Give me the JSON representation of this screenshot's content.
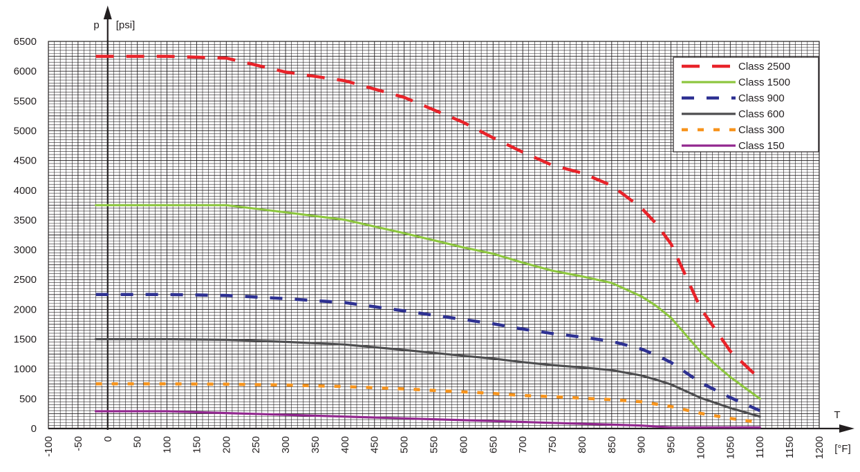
{
  "chart_data": {
    "type": "line",
    "ylabel_symbol": "p",
    "ylabel_unit": "[psi]",
    "xlabel_symbol": "T",
    "xlabel_unit": "[°F]",
    "xlim": [
      -100,
      1200
    ],
    "ylim": [
      0,
      6500
    ],
    "grid": true,
    "legend_position": "top-right",
    "x_ticks": [
      "-100",
      "-50",
      "0",
      "50",
      "100",
      "150",
      "200",
      "250",
      "300",
      "350",
      "400",
      "450",
      "500",
      "550",
      "600",
      "650",
      "700",
      "750",
      "800",
      "850",
      "900",
      "950",
      "1000",
      "1050",
      "1100",
      "1150",
      "1200"
    ],
    "y_ticks": [
      "0",
      "500",
      "1000",
      "1500",
      "2000",
      "2500",
      "3000",
      "3500",
      "4000",
      "4500",
      "5000",
      "5500",
      "6000",
      "6500"
    ],
    "x": [
      -20,
      100,
      200,
      300,
      400,
      500,
      600,
      650,
      700,
      750,
      800,
      850,
      900,
      925,
      950,
      1000,
      1050,
      1100
    ],
    "series": [
      {
        "name": "Class 2500",
        "color": "#e8232a",
        "dash": "long",
        "values": [
          6250,
          6250,
          6220,
          5985,
          5840,
          5560,
          5140,
          4880,
          4640,
          4420,
          4290,
          4080,
          3705,
          3440,
          3100,
          2020,
          1300,
          830
        ]
      },
      {
        "name": "Class 1500",
        "color": "#8dc63f",
        "dash": "solid",
        "values": [
          3750,
          3750,
          3750,
          3630,
          3505,
          3280,
          3040,
          2935,
          2785,
          2650,
          2555,
          2445,
          2220,
          2060,
          1860,
          1285,
          865,
          500
        ]
      },
      {
        "name": "Class 900",
        "color": "#2e3192",
        "dash": "short",
        "values": [
          2250,
          2250,
          2235,
          2180,
          2115,
          1975,
          1830,
          1760,
          1670,
          1595,
          1535,
          1465,
          1335,
          1235,
          1110,
          770,
          520,
          300
        ]
      },
      {
        "name": "Class 600",
        "color": "#4d4d4f",
        "dash": "solid",
        "values": [
          1500,
          1500,
          1490,
          1455,
          1410,
          1320,
          1220,
          1175,
          1115,
          1065,
          1025,
          980,
          890,
          820,
          740,
          515,
          345,
          200
        ]
      },
      {
        "name": "Class 300",
        "color": "#f7941d",
        "dash": "dotted",
        "values": [
          750,
          750,
          745,
          730,
          705,
          665,
          615,
          590,
          555,
          535,
          510,
          485,
          450,
          410,
          370,
          255,
          170,
          100
        ]
      },
      {
        "name": "Class 150",
        "color": "#92278f",
        "dash": "solid",
        "values": [
          290,
          290,
          260,
          230,
          200,
          170,
          140,
          125,
          110,
          95,
          80,
          65,
          50,
          35,
          20,
          20,
          20,
          20
        ]
      }
    ]
  }
}
